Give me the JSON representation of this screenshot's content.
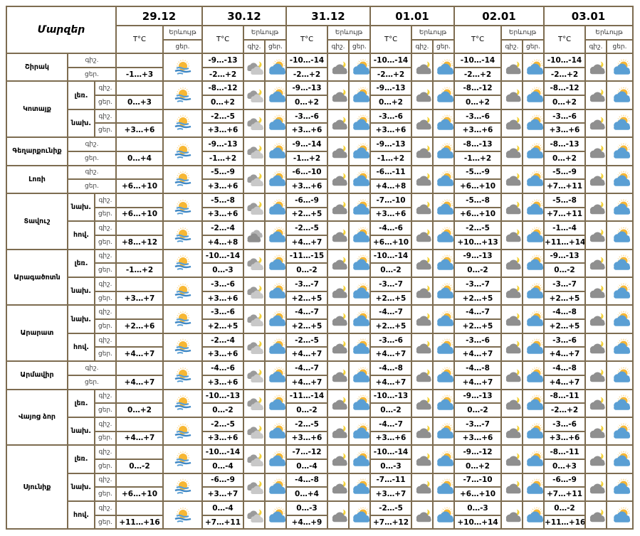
{
  "header": {
    "title": "Մարզեր",
    "temp_label": "T°C",
    "phenomenon_label": "Երևույթ",
    "night_label": "գիշ.",
    "day_label": "ցեր.",
    "dates": [
      "29.12",
      "30.12",
      "31.12",
      "01.01",
      "02.01",
      "03.01"
    ]
  },
  "colors": {
    "border": "#7d6c50",
    "sun": "#f7b733",
    "cloud_blue": "#5a9fd4",
    "cloud_gray": "#8f8f8f"
  },
  "regions": [
    {
      "name": "Շիրակ",
      "subs": [
        {
          "name": null,
          "night": [
            "-9…-13",
            "-10…-14",
            "-10…-14",
            "-10…-14",
            "-10…-14"
          ],
          "day": [
            "-1…+3",
            "-2…+2",
            "-2…+2",
            "-2…+2",
            "-2…+2",
            "-2…+2"
          ],
          "icons_night": [
            "cloud-moon-light",
            "cloud-moon",
            "cloud-moon",
            "cloud-moon",
            "cloud-moon"
          ],
          "icons_day": [
            "sun-fog",
            "sun-cloud",
            "sun-cloud",
            "sun-cloud",
            "sun-cloud",
            "sun-cloud"
          ]
        }
      ]
    },
    {
      "name": "Կոտայք",
      "subs": [
        {
          "name": "լեռ.",
          "night": [
            "-8…-12",
            "-9…-13",
            "-9…-13",
            "-8…-12",
            "-8…-12"
          ],
          "day": [
            "0…+3",
            "0…+2",
            "0…+2",
            "0…+2",
            "0…+2",
            "0…+2"
          ],
          "icons_night": [
            "cloud-moon-light",
            "cloud-moon",
            "cloud-moon",
            "cloud-moon",
            "cloud-moon"
          ],
          "icons_day": [
            "sun-fog",
            "sun-cloud",
            "sun-cloud",
            "sun-cloud",
            "sun-cloud",
            "sun-cloud"
          ]
        },
        {
          "name": "նախ.",
          "night": [
            "-2…-5",
            "-3…-6",
            "-3…-6",
            "-3…-6",
            "-3…-6"
          ],
          "day": [
            "+3…+6",
            "+3…+6",
            "+3…+6",
            "+3…+6",
            "+3…+6",
            "+3…+6"
          ],
          "icons_night": [
            "cloud-moon-light",
            "cloud-moon",
            "cloud-moon",
            "cloud-moon",
            "cloud-moon"
          ],
          "icons_day": [
            "sun-fog",
            "sun-cloud",
            "sun-cloud",
            "sun-cloud",
            "sun-cloud",
            "sun-cloud"
          ]
        }
      ]
    },
    {
      "name": "Գեղարքունիք",
      "subs": [
        {
          "name": null,
          "night": [
            "-9…-13",
            "-9…-14",
            "-9…-13",
            "-8…-13",
            "-8…-13"
          ],
          "day": [
            "0…+4",
            "-1…+2",
            "-1…+2",
            "-1…+2",
            "-1…+2",
            "0…+2"
          ],
          "icons_night": [
            "cloud-moon-light",
            "cloud-moon",
            "cloud-moon",
            "cloud-moon",
            "cloud-moon"
          ],
          "icons_day": [
            "sun-fog",
            "sun-cloud",
            "sun-cloud",
            "sun-cloud",
            "sun-cloud",
            "sun-cloud"
          ]
        }
      ]
    },
    {
      "name": "Լոռի",
      "subs": [
        {
          "name": null,
          "night": [
            "-5…-9",
            "-6…-10",
            "-6…-11",
            "-5…-9",
            "-5…-9"
          ],
          "day": [
            "+6…+10",
            "+3…+6",
            "+3…+6",
            "+4…+8",
            "+6…+10",
            "+7…+11"
          ],
          "icons_night": [
            "cloud-moon-light",
            "cloud-moon",
            "cloud-moon",
            "cloud-moon",
            "cloud-moon"
          ],
          "icons_day": [
            "sun-fog",
            "sun-cloud",
            "sun-cloud",
            "sun-cloud",
            "sun-cloud",
            "sun-cloud"
          ]
        }
      ]
    },
    {
      "name": "Տավուշ",
      "subs": [
        {
          "name": "նախ.",
          "night": [
            "-5…-8",
            "-6…-9",
            "-7…-10",
            "-5…-8",
            "-5…-8"
          ],
          "day": [
            "+6…+10",
            "+3…+6",
            "+2…+5",
            "+3…+6",
            "+6…+10",
            "+7…+11"
          ],
          "icons_night": [
            "cloud-moon-light",
            "cloud-moon",
            "cloud-moon",
            "cloud-moon",
            "cloud-moon"
          ],
          "icons_day": [
            "sun-fog",
            "sun-cloud",
            "sun-cloud",
            "sun-cloud",
            "sun-cloud",
            "sun-cloud"
          ]
        },
        {
          "name": "հով.",
          "night": [
            "-2…-4",
            "-2…-5",
            "-4…-6",
            "-2…-5",
            "-1…-4"
          ],
          "day": [
            "+8…+12",
            "+4…+8",
            "+4…+7",
            "+6…+10",
            "+10…+13",
            "+11…+14"
          ],
          "icons_night": [
            "cloudy",
            "cloud-moon",
            "cloud-moon",
            "cloud-moon",
            "cloud-moon"
          ],
          "icons_day": [
            "sun-fog",
            "sun-cloud",
            "sun-cloud",
            "sun-cloud",
            "sun-cloud",
            "sun-cloud"
          ]
        }
      ]
    },
    {
      "name": "Արագածոտն",
      "subs": [
        {
          "name": "լեռ.",
          "night": [
            "-10…-14",
            "-11…-15",
            "-10…-14",
            "-9…-13",
            "-9…-13"
          ],
          "day": [
            "-1…+2",
            "0…-3",
            "0…-2",
            "0…-2",
            "0…-2",
            "0…-2"
          ],
          "icons_night": [
            "cloud-moon-light",
            "cloud-moon",
            "cloud-moon",
            "cloud-moon",
            "cloud-moon"
          ],
          "icons_day": [
            "sun-fog",
            "sun-cloud",
            "sun-cloud",
            "sun-cloud",
            "sun-cloud",
            "sun-cloud"
          ]
        },
        {
          "name": "նախ.",
          "night": [
            "-3…-6",
            "-3…-7",
            "-3…-7",
            "-3…-7",
            "-3…-7"
          ],
          "day": [
            "+3…+7",
            "+3…+6",
            "+2…+5",
            "+2…+5",
            "+2…+5",
            "+2…+5"
          ],
          "icons_night": [
            "cloud-moon-light",
            "cloud-moon",
            "cloud-moon",
            "cloud-moon",
            "cloud-moon"
          ],
          "icons_day": [
            "sun-fog",
            "sun-cloud",
            "sun-cloud",
            "sun-cloud",
            "sun-cloud",
            "sun-cloud"
          ]
        }
      ]
    },
    {
      "name": "Արարատ",
      "subs": [
        {
          "name": "նախ.",
          "night": [
            "-3…-6",
            "-4…-7",
            "-4…-7",
            "-4…-7",
            "-4…-8"
          ],
          "day": [
            "+2…+6",
            "+2…+5",
            "+2…+5",
            "+2…+5",
            "+2…+5",
            "+2…+5"
          ],
          "icons_night": [
            "cloud-moon-light",
            "cloud-moon",
            "cloud-moon",
            "cloud-moon",
            "cloud-moon"
          ],
          "icons_day": [
            "sun-fog",
            "sun-cloud",
            "sun-cloud",
            "sun-cloud",
            "sun-cloud",
            "sun-cloud"
          ]
        },
        {
          "name": "հով.",
          "night": [
            "-2…-4",
            "-2…-5",
            "-3…-6",
            "-3…-6",
            "-3…-6"
          ],
          "day": [
            "+4…+7",
            "+3…+6",
            "+4…+7",
            "+4…+7",
            "+4…+7",
            "+4…+7"
          ],
          "icons_night": [
            "cloud-moon-light",
            "cloud-moon",
            "cloud-moon",
            "cloud-moon",
            "cloud-moon"
          ],
          "icons_day": [
            "sun-fog",
            "sun-cloud",
            "sun-cloud",
            "sun-cloud",
            "sun-cloud",
            "sun-cloud"
          ]
        }
      ]
    },
    {
      "name": "Արմավիր",
      "subs": [
        {
          "name": null,
          "night": [
            "-4…-6",
            "-4…-7",
            "-4…-8",
            "-4…-8",
            "-4…-8"
          ],
          "day": [
            "+4…+7",
            "+3…+6",
            "+4…+7",
            "+4…+7",
            "+4…+7",
            "+4…+7"
          ],
          "icons_night": [
            "cloud-moon-light",
            "cloud-moon",
            "cloud-moon",
            "cloud-moon",
            "cloud-moon"
          ],
          "icons_day": [
            "sun-fog",
            "sun-cloud",
            "sun-cloud",
            "sun-cloud",
            "sun-cloud",
            "sun-cloud"
          ]
        }
      ]
    },
    {
      "name": "Վայոց ձոր",
      "subs": [
        {
          "name": "լեռ.",
          "night": [
            "-10…-13",
            "-11…-14",
            "-10…-13",
            "-9…-13",
            "-8…-11"
          ],
          "day": [
            "0…+2",
            "0…-2",
            "0…-2",
            "0…-2",
            "0…-2",
            "-2…+2"
          ],
          "icons_night": [
            "cloud-moon-light",
            "cloud-moon",
            "cloud-moon",
            "cloud-moon",
            "cloud-moon"
          ],
          "icons_day": [
            "sun-fog",
            "sun-cloud",
            "sun-cloud",
            "sun-cloud",
            "sun-cloud",
            "sun-cloud"
          ]
        },
        {
          "name": "նախ.",
          "night": [
            "-2…-5",
            "-2…-5",
            "-4…-7",
            "-3…-7",
            "-3…-6"
          ],
          "day": [
            "+4…+7",
            "+3…+6",
            "+3…+6",
            "+3…+6",
            "+3…+6",
            "+3…+6"
          ],
          "icons_night": [
            "cloud-moon-light",
            "cloud-moon",
            "cloud-moon",
            "cloud-moon",
            "cloud-moon"
          ],
          "icons_day": [
            "sun-fog",
            "sun-cloud",
            "sun-cloud",
            "sun-cloud",
            "sun-cloud",
            "sun-cloud"
          ]
        }
      ]
    },
    {
      "name": "Սյունիք",
      "subs": [
        {
          "name": "լեռ.",
          "night": [
            "-10…-14",
            "-7…-12",
            "-10…-14",
            "-9…-12",
            "-8…-11"
          ],
          "day": [
            "0…-2",
            "0…-4",
            "0…-4",
            "0…-3",
            "0…+2",
            "0…+3"
          ],
          "icons_night": [
            "cloud-moon-light",
            "cloud-moon",
            "cloud-moon",
            "cloud-moon",
            "cloud-moon"
          ],
          "icons_day": [
            "sun-fog",
            "sun-cloud",
            "sun-cloud",
            "sun-cloud",
            "sun-cloud",
            "sun-cloud"
          ]
        },
        {
          "name": "նախ.",
          "night": [
            "-6…-9",
            "-4…-8",
            "-7…-11",
            "-7…-10",
            "-6…-9"
          ],
          "day": [
            "+6…+10",
            "+3…+7",
            "0…+4",
            "+3…+7",
            "+6…+10",
            "+7…+11"
          ],
          "icons_night": [
            "cloud-moon-light",
            "cloud-moon",
            "cloud-moon",
            "cloud-moon",
            "cloud-moon"
          ],
          "icons_day": [
            "sun-fog",
            "sun-cloud",
            "sun-cloud",
            "sun-cloud",
            "sun-cloud",
            "sun-cloud"
          ]
        },
        {
          "name": "հով.",
          "night": [
            "0…-4",
            "0…-3",
            "-2…-5",
            "0…-3",
            "0…-2"
          ],
          "day": [
            "+11…+16",
            "+7…+11",
            "+4…+9",
            "+7…+12",
            "+10…+14",
            "+11…+16"
          ],
          "icons_night": [
            "cloud-moon-light",
            "cloud-moon",
            "cloud-moon",
            "cloud-moon",
            "cloud-moon"
          ],
          "icons_day": [
            "sun-fog",
            "sun-cloud",
            "sun-cloud",
            "sun-cloud",
            "sun-cloud",
            "sun-cloud"
          ]
        }
      ]
    }
  ]
}
